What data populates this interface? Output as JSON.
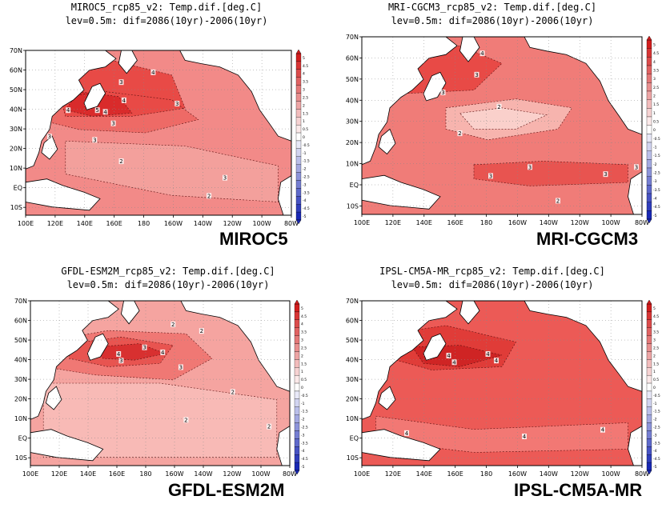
{
  "panels": [
    {
      "key": "miroc5",
      "title": "MIROC5_rcp85_v2: Temp.dif.[deg.C]",
      "subtitle": "lev=0.5m:  dif=2086(10yr)-2006(10yr)",
      "model_name": "MIROC5"
    },
    {
      "key": "mri",
      "title": "MRI-CGCM3_rcp85_v2: Temp.dif.[deg.C]",
      "subtitle": "lev=0.5m:  dif=2086(10yr)-2006(10yr)",
      "model_name": "MRI-CGCM3"
    },
    {
      "key": "gfdl",
      "title": "GFDL-ESM2M_rcp85_v2: Temp.dif.[deg.C]",
      "subtitle": "lev=0.5m:  dif=2086(10yr)-2006(10yr)",
      "model_name": "GFDL-ESM2M"
    },
    {
      "key": "ipsl",
      "title": "IPSL-CM5A-MR_rcp85_v2: Temp.dif.[deg.C]",
      "subtitle": "lev=0.5m:  dif=2086(10yr)-2006(10yr)",
      "model_name": "IPSL-CM5A-MR"
    }
  ],
  "axes": {
    "x_ticks": [
      "100E",
      "120E",
      "140E",
      "160E",
      "180",
      "160W",
      "140W",
      "120W",
      "100W",
      "80W"
    ],
    "y_ticks": [
      "70N",
      "60N",
      "50N",
      "40N",
      "30N",
      "20N",
      "10N",
      "EQ",
      "10S"
    ]
  },
  "colorbar": {
    "labels": [
      "5",
      "4.5",
      "4",
      "3.5",
      "3",
      "2.5",
      "2",
      "1.5",
      "1",
      "0.5",
      "0",
      "-0.5",
      "-1",
      "-1.5",
      "-2",
      "-2.5",
      "-3",
      "-3.5",
      "-4",
      "-4.5",
      "-5"
    ]
  },
  "contour_labels": {
    "miroc5": [
      "4",
      "3",
      "4",
      "3",
      "4",
      "4",
      "5",
      "3",
      "3",
      "3",
      "2",
      "3",
      "2"
    ],
    "mri": [
      "4",
      "3",
      "3",
      "2",
      "2",
      "3",
      "3",
      "3",
      "3",
      "2"
    ],
    "gfdl": [
      "2",
      "2",
      "3",
      "4",
      "4",
      "3",
      "3",
      "2",
      "2",
      "2"
    ],
    "ipsl": [
      "4",
      "4",
      "4",
      "4",
      "4",
      "4",
      "4"
    ]
  },
  "colors": {
    "warm_dark": "#d42a2a",
    "warm_mid": "#f05858",
    "warm_light": "#f7aaaa",
    "cool_dark": "#1a2ab4",
    "land": "#ffffff"
  }
}
